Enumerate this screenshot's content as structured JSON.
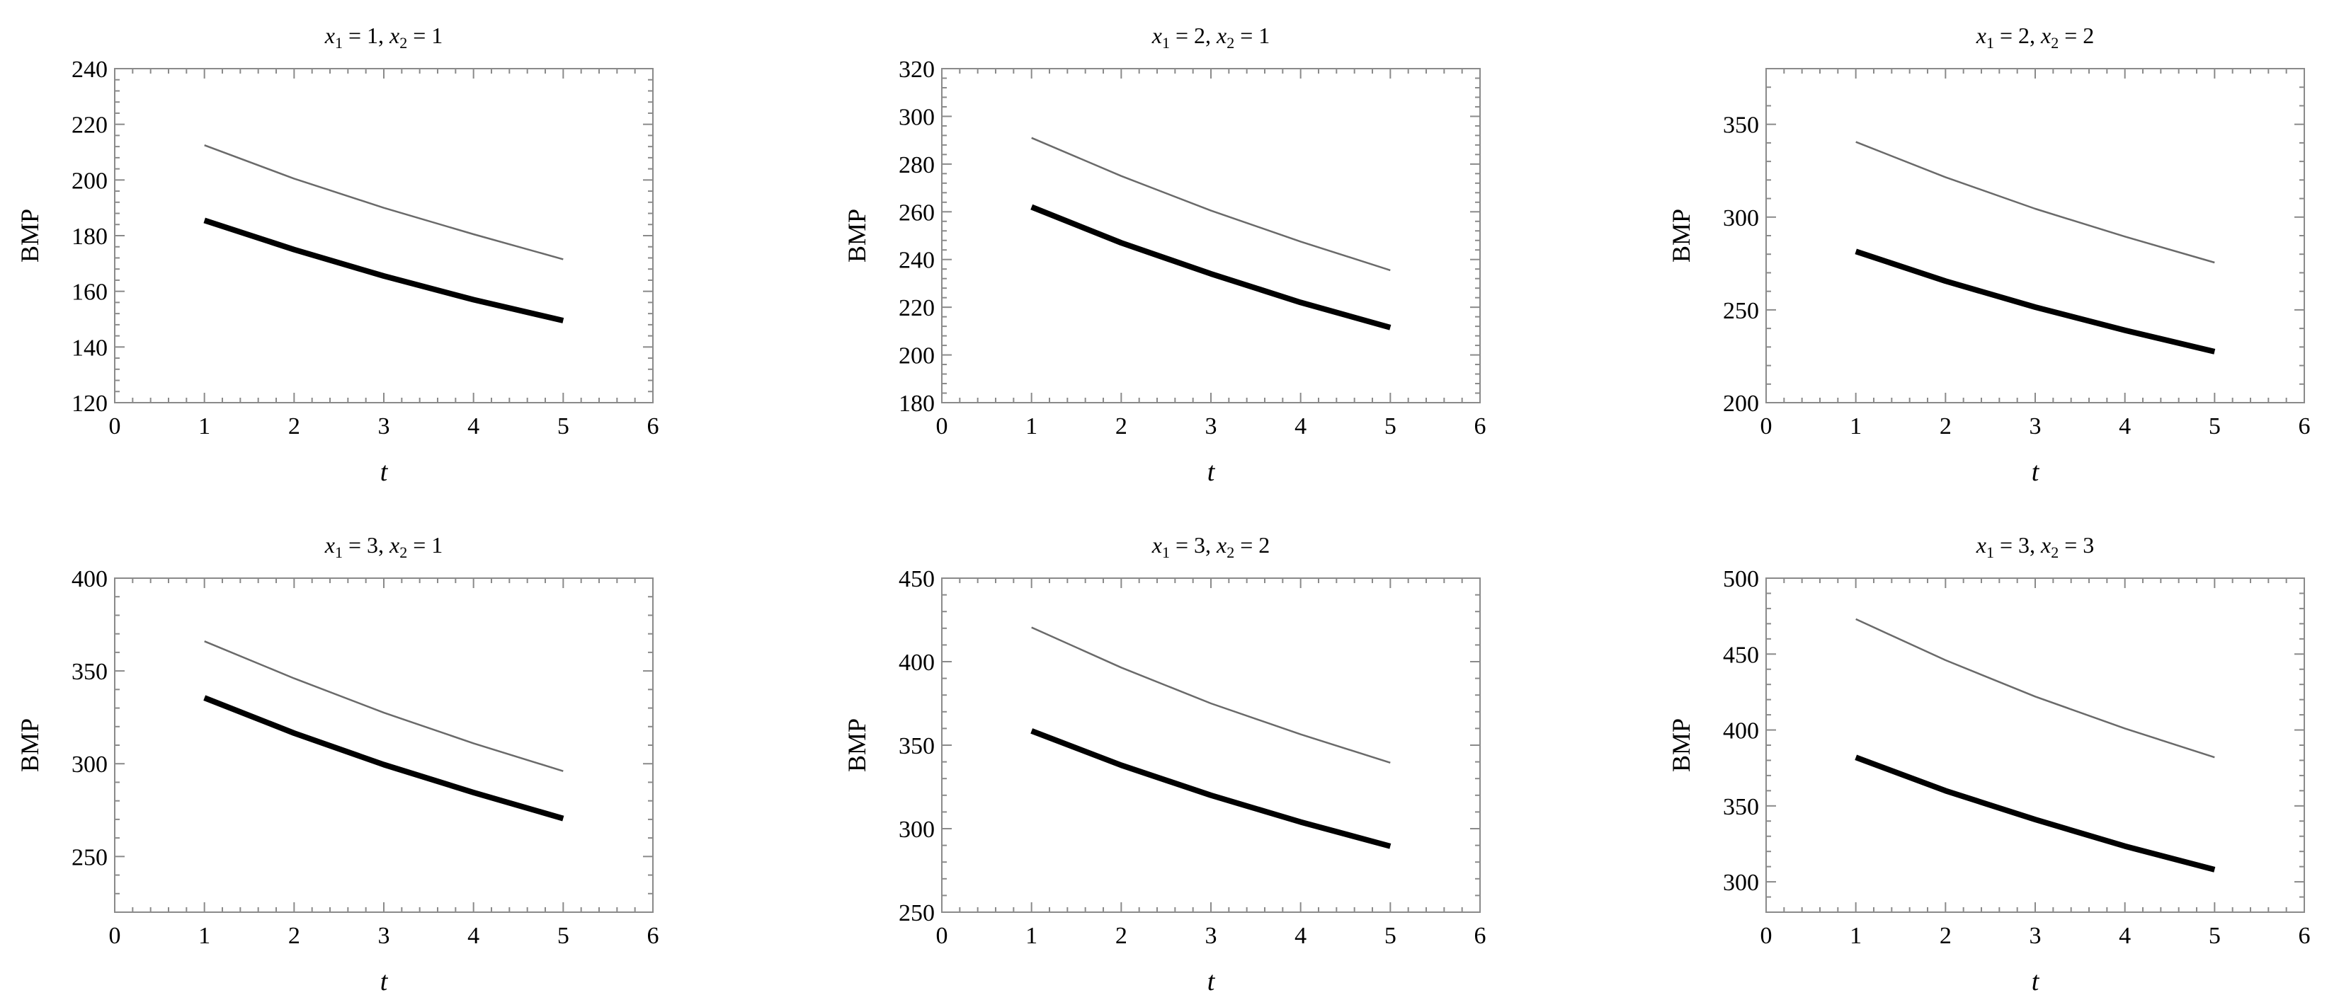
{
  "chart_data": [
    {
      "type": "line",
      "title": "x1 = 1, x2 = 1",
      "title_parts": {
        "v1": "x",
        "s1": "1",
        "eq1": " = 1, ",
        "v2": "x",
        "s2": "2",
        "eq2": " = 1"
      },
      "xlabel": "t",
      "ylabel": "BMP",
      "xlim": [
        0,
        6
      ],
      "ylim": [
        120,
        240
      ],
      "xticks": [
        0,
        1,
        2,
        3,
        4,
        5,
        6
      ],
      "yticks": [
        120,
        140,
        160,
        180,
        200,
        220,
        240
      ],
      "x": [
        1,
        2,
        3,
        4,
        5
      ],
      "series": [
        {
          "style": "thin",
          "values": [
            212.5,
            200.5,
            190,
            180.5,
            171.5
          ]
        },
        {
          "style": "thick",
          "values": [
            185.5,
            175,
            165.5,
            157,
            149.5
          ]
        }
      ]
    },
    {
      "type": "line",
      "title": "x1 = 2, x2 = 1",
      "title_parts": {
        "v1": "x",
        "s1": "1",
        "eq1": " = 2, ",
        "v2": "x",
        "s2": "2",
        "eq2": " = 1"
      },
      "xlabel": "t",
      "ylabel": "BMP",
      "xlim": [
        0,
        6
      ],
      "ylim": [
        180,
        320
      ],
      "xticks": [
        0,
        1,
        2,
        3,
        4,
        5,
        6
      ],
      "yticks": [
        180,
        200,
        220,
        240,
        260,
        280,
        300,
        320
      ],
      "x": [
        1,
        2,
        3,
        4,
        5
      ],
      "series": [
        {
          "style": "thin",
          "values": [
            291,
            275,
            260.5,
            247.5,
            235.5
          ]
        },
        {
          "style": "thick",
          "values": [
            262,
            247,
            234,
            222,
            211.5
          ]
        }
      ]
    },
    {
      "type": "line",
      "title": "x1 = 2, x2 = 2",
      "title_parts": {
        "v1": "x",
        "s1": "1",
        "eq1": " = 2, ",
        "v2": "x",
        "s2": "2",
        "eq2": " = 2"
      },
      "xlabel": "t",
      "ylabel": "BMP",
      "xlim": [
        0,
        6
      ],
      "ylim": [
        200,
        380
      ],
      "xticks": [
        0,
        1,
        2,
        3,
        4,
        5,
        6
      ],
      "yticks": [
        200,
        250,
        300,
        350
      ],
      "x": [
        1,
        2,
        3,
        4,
        5
      ],
      "series": [
        {
          "style": "thin",
          "values": [
            340.5,
            321.5,
            304.5,
            289.5,
            275.5
          ]
        },
        {
          "style": "thick",
          "values": [
            281.5,
            265.5,
            251.5,
            239,
            227.5
          ]
        }
      ]
    },
    {
      "type": "line",
      "title": "x1 = 3, x2 = 1",
      "title_parts": {
        "v1": "x",
        "s1": "1",
        "eq1": " = 3, ",
        "v2": "x",
        "s2": "2",
        "eq2": " = 1"
      },
      "xlabel": "t",
      "ylabel": "BMP",
      "xlim": [
        0,
        6
      ],
      "ylim": [
        220,
        400
      ],
      "xticks": [
        0,
        1,
        2,
        3,
        4,
        5,
        6
      ],
      "yticks": [
        250,
        300,
        350,
        400
      ],
      "x": [
        1,
        2,
        3,
        4,
        5
      ],
      "series": [
        {
          "style": "thin",
          "values": [
            366,
            346,
            327.5,
            311,
            296
          ]
        },
        {
          "style": "thick",
          "values": [
            335.5,
            316.5,
            299.5,
            284.5,
            270.5
          ]
        }
      ]
    },
    {
      "type": "line",
      "title": "x1 = 3, x2 = 2",
      "title_parts": {
        "v1": "x",
        "s1": "1",
        "eq1": " = 3, ",
        "v2": "x",
        "s2": "2",
        "eq2": " = 2"
      },
      "xlabel": "t",
      "ylabel": "BMP",
      "xlim": [
        0,
        6
      ],
      "ylim": [
        250,
        450
      ],
      "xticks": [
        0,
        1,
        2,
        3,
        4,
        5,
        6
      ],
      "yticks": [
        250,
        300,
        350,
        400,
        450
      ],
      "x": [
        1,
        2,
        3,
        4,
        5
      ],
      "series": [
        {
          "style": "thin",
          "values": [
            420.5,
            396.5,
            375,
            356.5,
            339.5
          ]
        },
        {
          "style": "thick",
          "values": [
            358.5,
            338,
            320,
            304,
            289.5
          ]
        }
      ]
    },
    {
      "type": "line",
      "title": "x1 = 3, x2 = 3",
      "title_parts": {
        "v1": "x",
        "s1": "1",
        "eq1": " = 3, ",
        "v2": "x",
        "s2": "2",
        "eq2": " = 3"
      },
      "xlabel": "t",
      "ylabel": "BMP",
      "xlim": [
        0,
        6
      ],
      "ylim": [
        280,
        500
      ],
      "xticks": [
        0,
        1,
        2,
        3,
        4,
        5,
        6
      ],
      "yticks": [
        300,
        350,
        400,
        450,
        500
      ],
      "x": [
        1,
        2,
        3,
        4,
        5
      ],
      "series": [
        {
          "style": "thin",
          "values": [
            473,
            446,
            422,
            401,
            382
          ]
        },
        {
          "style": "thick",
          "values": [
            382,
            360,
            341,
            323.5,
            308
          ]
        }
      ]
    }
  ]
}
